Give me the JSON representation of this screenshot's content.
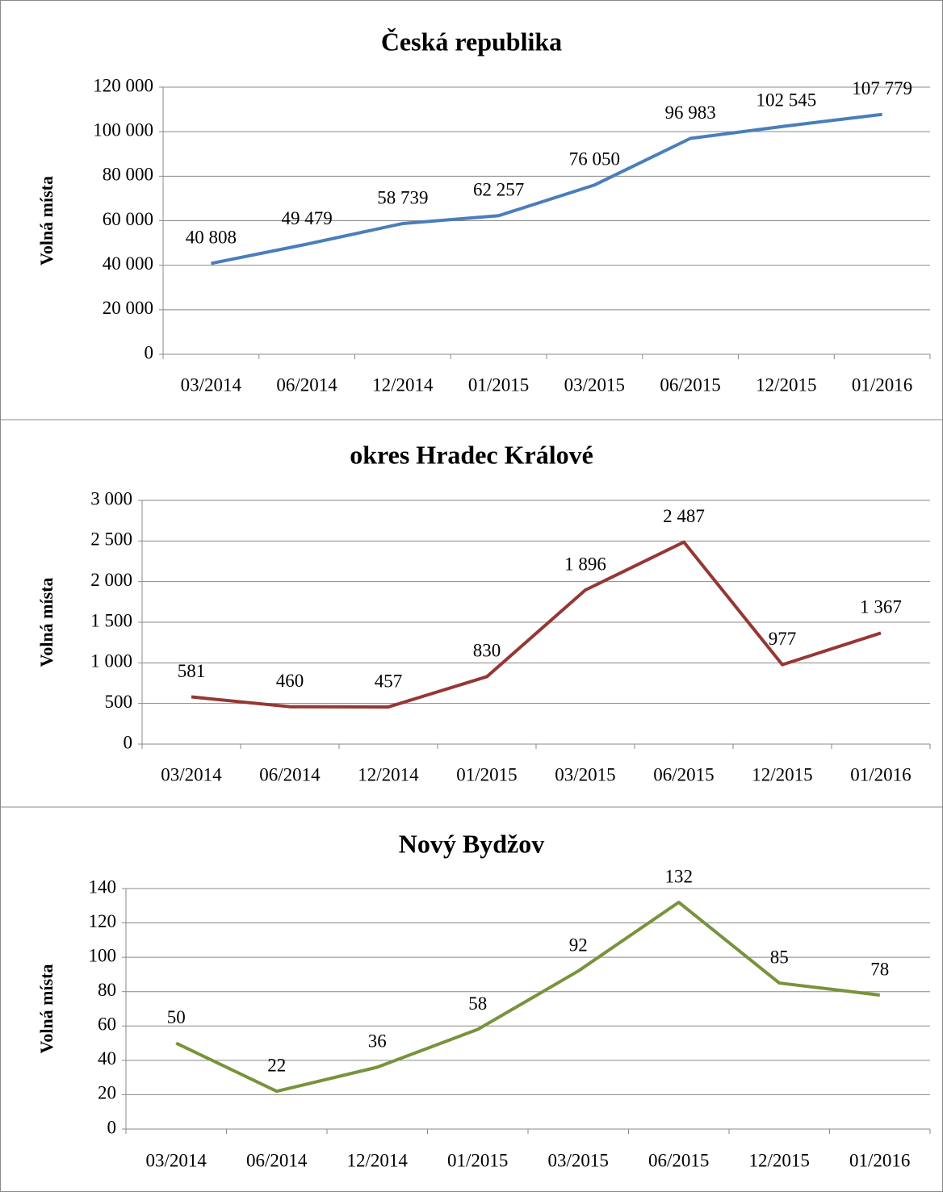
{
  "chart_data": [
    {
      "type": "line",
      "title": "Česká republika",
      "y_label": "Volná místa",
      "categories": [
        "03/2014",
        "06/2014",
        "12/2014",
        "01/2015",
        "03/2015",
        "06/2015",
        "12/2015",
        "01/2016"
      ],
      "series": [
        {
          "name": "Česká republika",
          "color": "#4a7ebb",
          "values": [
            40808,
            49479,
            58739,
            62257,
            76050,
            96983,
            102545,
            107779
          ],
          "value_labels": [
            "40 808",
            "49 479",
            "58 739",
            "62 257",
            "76 050",
            "96 983",
            "102 545",
            "107 779"
          ]
        }
      ],
      "ylim": [
        0,
        120000
      ],
      "yticks": [
        0,
        {
          "value": 20000,
          "label": "20 000"
        },
        {
          "value": 40000,
          "label": "40 000"
        },
        {
          "value": 60000,
          "label": "60 000"
        },
        {
          "value": 80000,
          "label": "80 000"
        },
        {
          "value": 100000,
          "label": "100 000"
        },
        {
          "value": 120000,
          "label": "120 000"
        }
      ],
      "grid": true
    },
    {
      "type": "line",
      "title": "okres Hradec Králové",
      "y_label": "Volná místa",
      "categories": [
        "03/2014",
        "06/2014",
        "12/2014",
        "01/2015",
        "03/2015",
        "06/2015",
        "12/2015",
        "01/2016"
      ],
      "series": [
        {
          "name": "okres Hradec Králové",
          "color": "#953735",
          "values": [
            581,
            460,
            457,
            830,
            1896,
            2487,
            977,
            1367
          ],
          "value_labels": [
            "581",
            "460",
            "457",
            "830",
            "1 896",
            "2 487",
            "977",
            "1 367"
          ]
        }
      ],
      "ylim": [
        0,
        3000
      ],
      "yticks": [
        0,
        500,
        {
          "value": 1000,
          "label": "1 000"
        },
        {
          "value": 1500,
          "label": "1 500"
        },
        {
          "value": 2000,
          "label": "2 000"
        },
        {
          "value": 2500,
          "label": "2 500"
        },
        {
          "value": 3000,
          "label": "3 000"
        }
      ],
      "grid": true
    },
    {
      "type": "line",
      "title": "Nový Bydžov",
      "y_label": "Volná místa",
      "categories": [
        "03/2014",
        "06/2014",
        "12/2014",
        "01/2015",
        "03/2015",
        "06/2015",
        "12/2015",
        "01/2016"
      ],
      "series": [
        {
          "name": "Nový Bydžov",
          "color": "#77933c",
          "values": [
            50,
            22,
            36,
            58,
            92,
            132,
            85,
            78
          ]
        }
      ],
      "ylim": [
        0,
        140
      ],
      "yticks": [
        0,
        20,
        40,
        60,
        80,
        100,
        120,
        140
      ],
      "grid": true
    }
  ]
}
